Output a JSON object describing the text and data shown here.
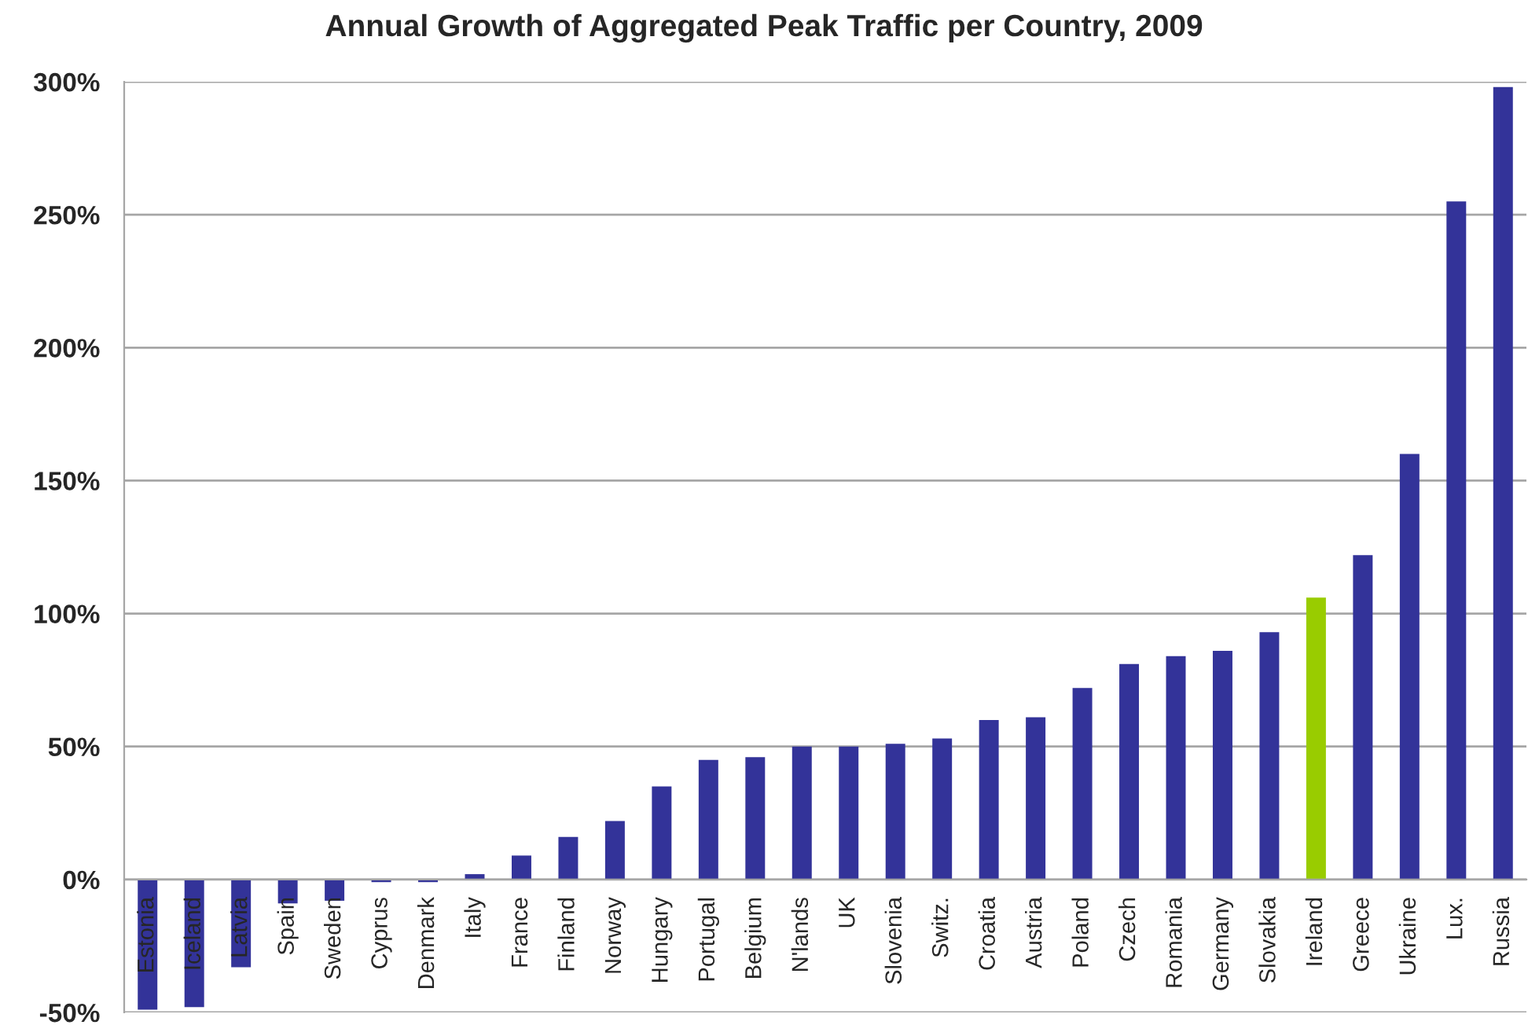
{
  "chart_data": {
    "type": "bar",
    "title": "Annual Growth of Aggregated Peak Traffic per Country, 2009",
    "categories": [
      "Estonia",
      "Iceland",
      "Latvia",
      "Spain",
      "Sweden",
      "Cyprus",
      "Denmark",
      "Italy",
      "France",
      "Finland",
      "Norway",
      "Hungary",
      "Portugal",
      "Belgium",
      "N'lands",
      "UK",
      "Slovenia",
      "Switz.",
      "Croatia",
      "Austria",
      "Poland",
      "Czech",
      "Romania",
      "Germany",
      "Slovakia",
      "Ireland",
      "Greece",
      "Ukraine",
      "Lux.",
      "Russia"
    ],
    "values": [
      -49,
      -48,
      -33,
      -9,
      -8,
      -1,
      -1,
      2,
      9,
      16,
      22,
      35,
      45,
      46,
      50,
      50,
      51,
      53,
      60,
      61,
      72,
      81,
      84,
      86,
      93,
      106,
      122,
      160,
      255,
      298
    ],
    "colors": [
      "#333399",
      "#333399",
      "#333399",
      "#333399",
      "#333399",
      "#333399",
      "#333399",
      "#333399",
      "#333399",
      "#333399",
      "#333399",
      "#333399",
      "#333399",
      "#333399",
      "#333399",
      "#333399",
      "#333399",
      "#333399",
      "#333399",
      "#333399",
      "#333399",
      "#333399",
      "#333399",
      "#333399",
      "#333399",
      "#99cc00",
      "#333399",
      "#333399",
      "#333399",
      "#333399"
    ],
    "ylim": [
      -50,
      300
    ],
    "yticks": [
      {
        "value": -50,
        "label": "-50%"
      },
      {
        "value": 0,
        "label": "0%"
      },
      {
        "value": 50,
        "label": "50%"
      },
      {
        "value": 100,
        "label": "100%"
      },
      {
        "value": 150,
        "label": "150%"
      },
      {
        "value": 200,
        "label": "200%"
      },
      {
        "value": 250,
        "label": "250%"
      },
      {
        "value": 300,
        "label": "300%"
      }
    ],
    "grid": "y"
  }
}
